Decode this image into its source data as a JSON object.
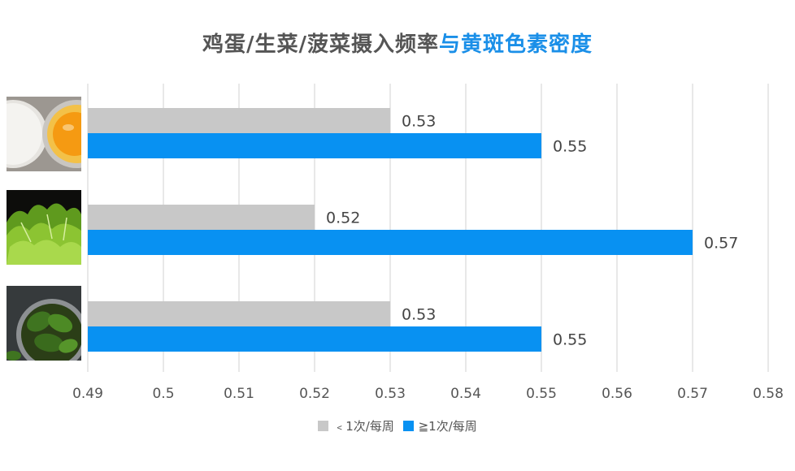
{
  "title": {
    "part1": "鸡蛋/生菜/菠菜摄入频率",
    "part2": "与黄斑色素密度"
  },
  "colors": {
    "low": "#c8c8c8",
    "high": "#0891f2",
    "grid": "#d9d9d9",
    "title_dark": "#555555",
    "title_accent": "#1a8fe8"
  },
  "images": [
    {
      "icon": "egg-photo"
    },
    {
      "icon": "lettuce-photo"
    },
    {
      "icon": "spinach-photo"
    }
  ],
  "chart_data": {
    "type": "bar",
    "orientation": "horizontal",
    "title": "鸡蛋/生菜/菠菜摄入频率与黄斑色素密度",
    "categories": [
      "鸡蛋",
      "生菜",
      "菠菜"
    ],
    "series": [
      {
        "name": "﹤1次/每周",
        "color": "#c8c8c8",
        "values": [
          0.53,
          0.52,
          0.53
        ]
      },
      {
        "name": "≧1次/每周",
        "color": "#0891f2",
        "values": [
          0.55,
          0.57,
          0.55
        ]
      }
    ],
    "xlim": [
      0.49,
      0.58
    ],
    "xticks": [
      "0.49",
      "0.5",
      "0.51",
      "0.52",
      "0.53",
      "0.54",
      "0.55",
      "0.56",
      "0.57",
      "0.58"
    ],
    "grid": true,
    "legend": "bottom-center"
  }
}
